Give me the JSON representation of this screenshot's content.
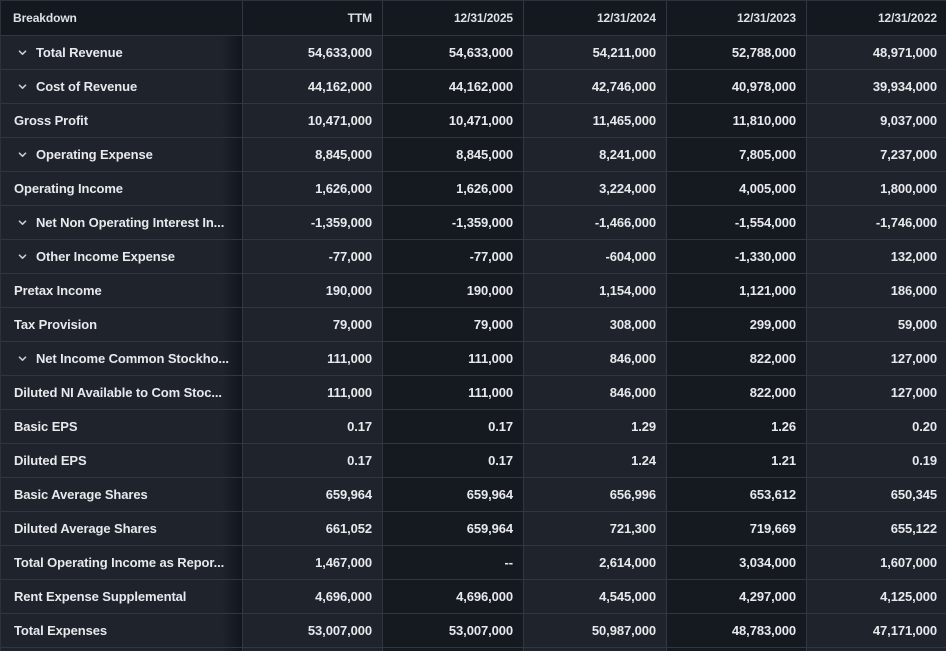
{
  "table": {
    "columns": [
      {
        "label": "Breakdown"
      },
      {
        "label": "TTM"
      },
      {
        "label": "12/31/2025"
      },
      {
        "label": "12/31/2024"
      },
      {
        "label": "12/31/2023"
      },
      {
        "label": "12/31/2022"
      }
    ],
    "rows": [
      {
        "label": "Total Revenue",
        "expandable": true,
        "values": [
          "54,633,000",
          "54,633,000",
          "54,211,000",
          "52,788,000",
          "48,971,000"
        ]
      },
      {
        "label": "Cost of Revenue",
        "expandable": true,
        "values": [
          "44,162,000",
          "44,162,000",
          "42,746,000",
          "40,978,000",
          "39,934,000"
        ]
      },
      {
        "label": "Gross Profit",
        "expandable": false,
        "values": [
          "10,471,000",
          "10,471,000",
          "11,465,000",
          "11,810,000",
          "9,037,000"
        ]
      },
      {
        "label": "Operating Expense",
        "expandable": true,
        "values": [
          "8,845,000",
          "8,845,000",
          "8,241,000",
          "7,805,000",
          "7,237,000"
        ]
      },
      {
        "label": "Operating Income",
        "expandable": false,
        "values": [
          "1,626,000",
          "1,626,000",
          "3,224,000",
          "4,005,000",
          "1,800,000"
        ]
      },
      {
        "label": "Net Non Operating Interest In...",
        "expandable": true,
        "values": [
          "-1,359,000",
          "-1,359,000",
          "-1,466,000",
          "-1,554,000",
          "-1,746,000"
        ]
      },
      {
        "label": "Other Income Expense",
        "expandable": true,
        "values": [
          "-77,000",
          "-77,000",
          "-604,000",
          "-1,330,000",
          "132,000"
        ]
      },
      {
        "label": "Pretax Income",
        "expandable": false,
        "values": [
          "190,000",
          "190,000",
          "1,154,000",
          "1,121,000",
          "186,000"
        ]
      },
      {
        "label": "Tax Provision",
        "expandable": false,
        "values": [
          "79,000",
          "79,000",
          "308,000",
          "299,000",
          "59,000"
        ]
      },
      {
        "label": "Net Income Common Stockho...",
        "expandable": true,
        "values": [
          "111,000",
          "111,000",
          "846,000",
          "822,000",
          "127,000"
        ]
      },
      {
        "label": "Diluted NI Available to Com Stoc...",
        "expandable": false,
        "values": [
          "111,000",
          "111,000",
          "846,000",
          "822,000",
          "127,000"
        ]
      },
      {
        "label": "Basic EPS",
        "expandable": false,
        "values": [
          "0.17",
          "0.17",
          "1.29",
          "1.26",
          "0.20"
        ]
      },
      {
        "label": "Diluted EPS",
        "expandable": false,
        "values": [
          "0.17",
          "0.17",
          "1.24",
          "1.21",
          "0.19"
        ]
      },
      {
        "label": "Basic Average Shares",
        "expandable": false,
        "values": [
          "659,964",
          "659,964",
          "656,996",
          "653,612",
          "650,345"
        ]
      },
      {
        "label": "Diluted Average Shares",
        "expandable": false,
        "values": [
          "661,052",
          "659,964",
          "721,300",
          "719,669",
          "655,122"
        ]
      },
      {
        "label": "Total Operating Income as Repor...",
        "expandable": false,
        "values": [
          "1,467,000",
          "--",
          "2,614,000",
          "3,034,000",
          "1,607,000"
        ]
      },
      {
        "label": "Rent Expense Supplemental",
        "expandable": false,
        "values": [
          "4,696,000",
          "4,696,000",
          "4,545,000",
          "4,297,000",
          "4,125,000"
        ]
      },
      {
        "label": "Total Expenses",
        "expandable": false,
        "values": [
          "53,007,000",
          "53,007,000",
          "50,987,000",
          "48,783,000",
          "47,171,000"
        ]
      }
    ]
  },
  "colors": {
    "background": "#14181f",
    "column_dark": "#151a21",
    "column_light": "#1e232c",
    "border": "#31363f",
    "text": "#e7e9ec",
    "header_text": "#dde1e6"
  },
  "icons": {
    "expand_chevron": "chevron-down"
  }
}
